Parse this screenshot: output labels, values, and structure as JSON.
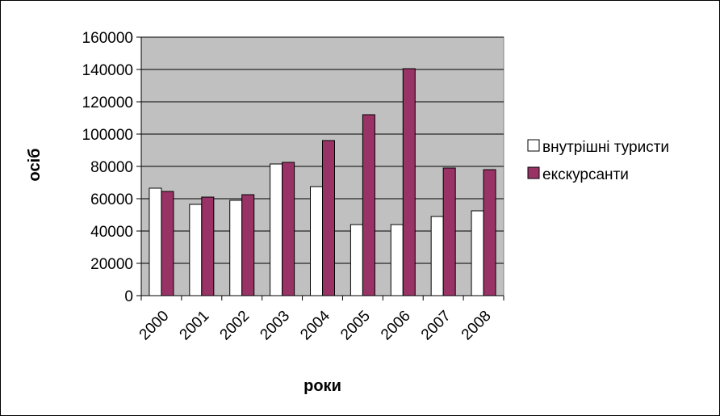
{
  "chart_data": {
    "type": "bar",
    "categories": [
      "2000",
      "2001",
      "2002",
      "2003",
      "2004",
      "2005",
      "2006",
      "2007",
      "2008"
    ],
    "series": [
      {
        "name": "внутрішні туристи",
        "values": [
          66500,
          56500,
          59000,
          81500,
          67500,
          44000,
          44000,
          49000,
          52500
        ],
        "color": "#ffffff"
      },
      {
        "name": "екскурсанти",
        "values": [
          64500,
          61000,
          62500,
          82500,
          96000,
          112000,
          140500,
          79000,
          78000
        ],
        "color": "#993366"
      }
    ],
    "yticks": [
      "0",
      "20000",
      "40000",
      "60000",
      "80000",
      "100000",
      "120000",
      "140000",
      "160000"
    ],
    "ylim": [
      0,
      160000
    ],
    "xlabel": "роки",
    "ylabel": "осіб",
    "grid": true,
    "plot_background": "#c0c0c0",
    "legend_position": "right"
  }
}
